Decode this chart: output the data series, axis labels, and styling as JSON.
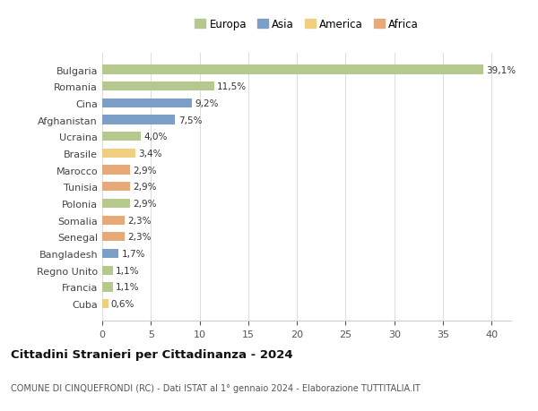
{
  "countries": [
    "Bulgaria",
    "Romania",
    "Cina",
    "Afghanistan",
    "Ucraina",
    "Brasile",
    "Marocco",
    "Tunisia",
    "Polonia",
    "Somalia",
    "Senegal",
    "Bangladesh",
    "Regno Unito",
    "Francia",
    "Cuba"
  ],
  "values": [
    39.1,
    11.5,
    9.2,
    7.5,
    4.0,
    3.4,
    2.9,
    2.9,
    2.9,
    2.3,
    2.3,
    1.7,
    1.1,
    1.1,
    0.6
  ],
  "labels": [
    "39,1%",
    "11,5%",
    "9,2%",
    "7,5%",
    "4,0%",
    "3,4%",
    "2,9%",
    "2,9%",
    "2,9%",
    "2,3%",
    "2,3%",
    "1,7%",
    "1,1%",
    "1,1%",
    "0,6%"
  ],
  "continents": [
    "Europa",
    "Europa",
    "Asia",
    "Asia",
    "Europa",
    "America",
    "Africa",
    "Africa",
    "Europa",
    "Africa",
    "Africa",
    "Asia",
    "Europa",
    "Europa",
    "America"
  ],
  "continent_colors": {
    "Europa": "#b5c98e",
    "Asia": "#7b9fc7",
    "America": "#f0d080",
    "Africa": "#e8a878"
  },
  "legend_order": [
    "Europa",
    "Asia",
    "America",
    "Africa"
  ],
  "title": "Cittadini Stranieri per Cittadinanza - 2024",
  "subtitle": "COMUNE DI CINQUEFRONDI (RC) - Dati ISTAT al 1° gennaio 2024 - Elaborazione TUTTITALIA.IT",
  "xlim": [
    0,
    42
  ],
  "xticks": [
    0,
    5,
    10,
    15,
    20,
    25,
    30,
    35,
    40
  ],
  "background_color": "#ffffff",
  "grid_color": "#dddddd",
  "bar_height": 0.55
}
